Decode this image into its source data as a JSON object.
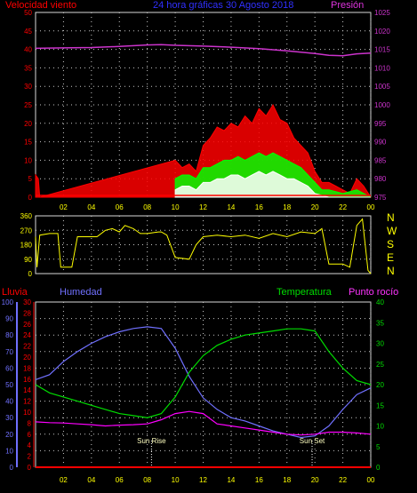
{
  "header": {
    "left_label": "Velocidad viento",
    "center_label": "24 hora gráficas  30 Agosto 2018",
    "right_label": "Presión"
  },
  "compass": [
    "N",
    "W",
    "S",
    "E",
    "N"
  ],
  "labels": {
    "rain": "Lluvia",
    "humidity": "Humedad",
    "temperature": "Temperatura",
    "dewpoint": "Punto rocío",
    "sunrise": "Sun Rise",
    "sunset": "Sun Set"
  },
  "colors": {
    "wind_gust": "#ff0000",
    "wind_avg": "#00ff00",
    "wind_low": "#ffffff",
    "pressure": "#cc33cc",
    "direction": "#ffff00",
    "humidity": "#7070ff",
    "temperature": "#00dd00",
    "dewpoint": "#ff00ff",
    "rain": "#ff0000",
    "grid": "#c8c8c8"
  },
  "chart_data": [
    {
      "type": "line",
      "name": "wind-pressure",
      "x_ticks": [
        "02",
        "04",
        "06",
        "08",
        "10",
        "12",
        "14",
        "16",
        "18",
        "20",
        "22",
        "00"
      ],
      "y_left_ticks": [
        0,
        5,
        10,
        15,
        20,
        25,
        30,
        35,
        40,
        45,
        50
      ],
      "y_right_ticks": [
        975,
        980,
        985,
        990,
        995,
        1000,
        1005,
        1010,
        1015,
        1020,
        1025
      ],
      "ylim_left": [
        0,
        50
      ],
      "ylim_right": [
        975,
        1025
      ],
      "series": [
        {
          "role": "pressure",
          "x": [
            0,
            2,
            4,
            6,
            8,
            9,
            10,
            12,
            14,
            16,
            18,
            20,
            21,
            22,
            23,
            24
          ],
          "values": [
            1015.3,
            1015.4,
            1015.5,
            1015.8,
            1016.2,
            1016.3,
            1016.1,
            1015.9,
            1015.6,
            1015.2,
            1014.6,
            1013.9,
            1013.4,
            1013.3,
            1013.8,
            1014.0
          ]
        },
        {
          "role": "wind_gust",
          "x": [
            0,
            0.2,
            0.3,
            10.0,
            10.5,
            11.0,
            11.5,
            12.0,
            12.5,
            13.0,
            13.5,
            14.0,
            14.5,
            15.0,
            15.5,
            16.0,
            16.5,
            17.0,
            17.5,
            18.0,
            18.5,
            19.0,
            19.5,
            20.0,
            20.5,
            21.0,
            21.5,
            22.0,
            22.5,
            23.0,
            23.5,
            24.0
          ],
          "values": [
            6,
            5,
            0,
            10,
            8,
            9,
            7,
            14,
            16,
            19,
            18,
            20,
            19,
            22,
            20,
            24,
            22,
            25,
            21,
            20,
            16,
            14,
            12,
            7,
            4,
            4,
            3,
            2,
            1,
            5,
            3,
            0
          ]
        },
        {
          "role": "wind_avg",
          "x": [
            10.0,
            10.5,
            11.0,
            11.5,
            12.0,
            12.5,
            13.0,
            13.5,
            14.0,
            14.5,
            15.0,
            15.5,
            16.0,
            16.5,
            17.0,
            17.5,
            18.0,
            18.5,
            19.0,
            19.5,
            20.0,
            20.5,
            21.0,
            22.0,
            23.0,
            24.0
          ],
          "values": [
            5,
            6,
            6,
            5,
            8,
            8,
            9,
            10,
            10,
            11,
            10,
            11,
            12,
            11,
            12,
            11,
            10,
            9,
            8,
            6,
            4,
            2,
            2,
            1,
            2,
            0
          ]
        },
        {
          "role": "wind_low",
          "x": [
            10.0,
            10.5,
            11.0,
            11.5,
            12.0,
            12.5,
            13.0,
            13.5,
            14.0,
            14.5,
            15.0,
            15.5,
            16.0,
            16.5,
            17.0,
            17.5,
            18.0,
            18.5,
            19.0,
            19.5,
            20.0,
            21.0,
            24.0
          ],
          "values": [
            2,
            3,
            3,
            2,
            4,
            4,
            5,
            5,
            6,
            6,
            5,
            6,
            7,
            6,
            7,
            6,
            5,
            5,
            4,
            3,
            1,
            0,
            0
          ]
        }
      ]
    },
    {
      "type": "line",
      "name": "wind-direction",
      "y_ticks": [
        0,
        90,
        180,
        270,
        360
      ],
      "ylim": [
        0,
        360
      ],
      "series": [
        {
          "role": "direction",
          "x": [
            0,
            0.1,
            0.3,
            1.0,
            1.6,
            1.8,
            2.6,
            3.0,
            3.8,
            4.4,
            5.0,
            5.5,
            6.0,
            6.4,
            7.0,
            7.5,
            8.0,
            8.8,
            9.0,
            9.4,
            10.0,
            11.0,
            11.5,
            12.0,
            13.0,
            14.0,
            15.0,
            16.0,
            17.0,
            18.0,
            19.0,
            20.0,
            20.5,
            21.0,
            22.0,
            22.5,
            23.0,
            23.4,
            23.8,
            24.0
          ],
          "values": [
            230,
            40,
            240,
            250,
            250,
            40,
            40,
            230,
            230,
            230,
            270,
            280,
            260,
            300,
            280,
            250,
            250,
            260,
            260,
            240,
            100,
            90,
            180,
            230,
            240,
            230,
            240,
            220,
            250,
            230,
            260,
            250,
            280,
            60,
            60,
            40,
            300,
            340,
            20,
            0
          ]
        }
      ]
    },
    {
      "type": "line",
      "name": "humidity-temperature",
      "x_ticks": [
        "02",
        "04",
        "06",
        "08",
        "10",
        "12",
        "14",
        "16",
        "18",
        "20",
        "22",
        "00"
      ],
      "y_humidity_ticks": [
        0,
        10,
        20,
        30,
        40,
        50,
        60,
        70,
        80,
        90,
        100
      ],
      "y_rain_ticks": [
        0,
        2,
        4,
        6,
        8,
        10,
        12,
        14,
        16,
        18,
        20,
        22,
        24,
        26,
        28,
        30
      ],
      "y_right_ticks": [
        0,
        5,
        10,
        15,
        20,
        25,
        30,
        35,
        40
      ],
      "ylim_humidity": [
        0,
        100
      ],
      "ylim_rain": [
        0,
        30
      ],
      "ylim_right": [
        0,
        40
      ],
      "series": [
        {
          "role": "humidity",
          "x": [
            0,
            1,
            2,
            3,
            4,
            5,
            6,
            7,
            8,
            9,
            10,
            11,
            12,
            13,
            14,
            15,
            16,
            17,
            18,
            19,
            20,
            21,
            22,
            23,
            24
          ],
          "values": [
            53,
            56,
            64,
            70,
            75,
            79,
            82,
            84,
            85,
            84,
            72,
            55,
            42,
            35,
            30,
            28,
            25,
            22,
            20,
            18,
            19,
            25,
            35,
            44,
            48
          ]
        },
        {
          "role": "temperature",
          "x": [
            0,
            1,
            2,
            3,
            4,
            5,
            6,
            7,
            8,
            9,
            10,
            11,
            12,
            13,
            14,
            15,
            16,
            17,
            18,
            19,
            20,
            21,
            22,
            23,
            24
          ],
          "values": [
            20,
            18,
            17,
            16,
            15,
            14,
            13,
            12.5,
            12,
            13,
            17,
            23,
            27,
            29.5,
            31,
            32,
            32.5,
            33,
            33.5,
            33.5,
            33,
            28,
            24,
            21,
            20
          ]
        },
        {
          "role": "dewpoint",
          "x": [
            0,
            1,
            2,
            3,
            4,
            5,
            6,
            7,
            8,
            9,
            10,
            11,
            12,
            13,
            14,
            15,
            16,
            17,
            18,
            19,
            20,
            21,
            22,
            23,
            24
          ],
          "values": [
            11,
            10.8,
            10.7,
            10.5,
            10.3,
            10.0,
            10.2,
            10.3,
            10.5,
            11.5,
            13,
            13.5,
            13,
            10.5,
            10,
            9.5,
            9.0,
            8.5,
            8.0,
            7.8,
            8.0,
            8.5,
            8.5,
            8.3,
            8.0
          ]
        },
        {
          "role": "rain",
          "x": [
            0,
            24
          ],
          "values": [
            0,
            0
          ]
        }
      ],
      "markers": [
        {
          "role": "sunrise",
          "x": 8.3
        },
        {
          "role": "sunset",
          "x": 19.8
        }
      ]
    }
  ]
}
